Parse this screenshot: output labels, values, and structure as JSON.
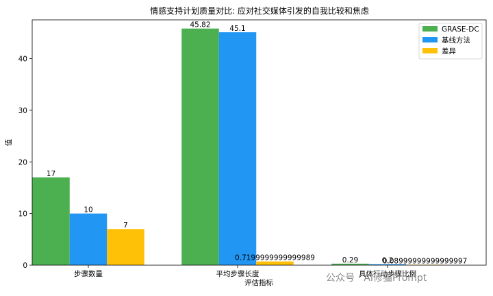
{
  "chart_data": {
    "type": "bar",
    "title": "情感支持计划质量对比: 应对社交媒体引发的自我比较和焦虑",
    "xlabel": "评估指标",
    "ylabel": "值",
    "categories": [
      "步骤数量",
      "平均步骤长度",
      "具体行动步骤比例"
    ],
    "ylim": [
      0,
      47.5
    ],
    "yticks": [
      0,
      10,
      20,
      30,
      40
    ],
    "grid": false,
    "legend": "top-right",
    "series": [
      {
        "name": "GRASE-DC",
        "color": "#4caf50",
        "values": [
          17,
          45.82,
          0.29
        ],
        "labels": [
          "17",
          "45.82",
          "0.29"
        ]
      },
      {
        "name": "基线方法",
        "color": "#2196f3",
        "values": [
          10,
          45.1,
          0.2
        ],
        "labels": [
          "10",
          "45.1",
          "0.2"
        ]
      },
      {
        "name": "差异",
        "color": "#ffc107",
        "values": [
          7,
          0.7199999999999989,
          0.08999999999999997
        ],
        "labels": [
          "7",
          "0.7199999999999989",
          "0.08999999999999997"
        ]
      }
    ]
  },
  "watermark": {
    "text": "公众号 · AI修猫Prompt"
  }
}
